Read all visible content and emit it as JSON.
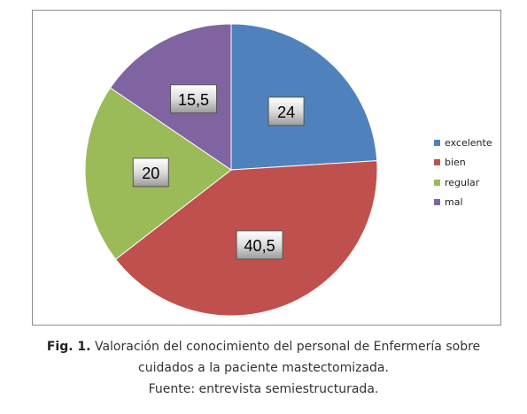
{
  "chart_data": {
    "type": "pie",
    "categories": [
      "excelente",
      "bien",
      "regular",
      "mal"
    ],
    "values": [
      24,
      40.5,
      20,
      15.5
    ],
    "value_labels": [
      "24",
      "40,5",
      "20",
      "15,5"
    ],
    "colors": [
      "#4f81bd",
      "#c0504d",
      "#9bbb59",
      "#8064a2"
    ],
    "start_angle": "12 o'clock",
    "direction": "clockwise",
    "legend_position": "right"
  },
  "caption": {
    "fig_label": "Fig. 1.",
    "line1": "Valoración del conocimiento del personal de Enfermería sobre",
    "line2": "cuidados a la paciente mastectomizada.",
    "line3": "Fuente: entrevista semiestructurada."
  }
}
